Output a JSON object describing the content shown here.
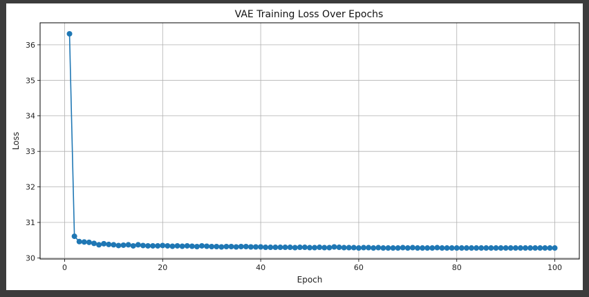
{
  "chart_data": {
    "type": "line",
    "title": "VAE Training Loss Over Epochs",
    "xlabel": "Epoch",
    "ylabel": "Loss",
    "xlim": [
      -5,
      105
    ],
    "ylim": [
      29.97,
      36.62
    ],
    "xticks": [
      0,
      20,
      40,
      60,
      80,
      100
    ],
    "yticks": [
      30,
      31,
      32,
      33,
      34,
      35,
      36
    ],
    "grid": true,
    "marker": "circle",
    "series": [
      {
        "color": "#1f77b4",
        "x": [
          1,
          2,
          3,
          4,
          5,
          6,
          7,
          8,
          9,
          10,
          11,
          12,
          13,
          14,
          15,
          16,
          17,
          18,
          19,
          20,
          21,
          22,
          23,
          24,
          25,
          26,
          27,
          28,
          29,
          30,
          31,
          32,
          33,
          34,
          35,
          36,
          37,
          38,
          39,
          40,
          41,
          42,
          43,
          44,
          45,
          46,
          47,
          48,
          49,
          50,
          51,
          52,
          53,
          54,
          55,
          56,
          57,
          58,
          59,
          60,
          61,
          62,
          63,
          64,
          65,
          66,
          67,
          68,
          69,
          70,
          71,
          72,
          73,
          74,
          75,
          76,
          77,
          78,
          79,
          80,
          81,
          82,
          83,
          84,
          85,
          86,
          87,
          88,
          89,
          90,
          91,
          92,
          93,
          94,
          95,
          96,
          97,
          98,
          99,
          100
        ],
        "values": [
          36.31,
          30.61,
          30.46,
          30.45,
          30.44,
          30.41,
          30.37,
          30.4,
          30.38,
          30.37,
          30.35,
          30.36,
          30.37,
          30.34,
          30.37,
          30.35,
          30.34,
          30.34,
          30.34,
          30.35,
          30.34,
          30.33,
          30.34,
          30.33,
          30.34,
          30.33,
          30.32,
          30.34,
          30.33,
          30.32,
          30.32,
          30.31,
          30.32,
          30.32,
          30.31,
          30.32,
          30.32,
          30.31,
          30.31,
          30.31,
          30.3,
          30.3,
          30.3,
          30.3,
          30.3,
          30.3,
          30.29,
          30.3,
          30.3,
          30.29,
          30.29,
          30.3,
          30.29,
          30.29,
          30.31,
          30.3,
          30.29,
          30.29,
          30.29,
          30.28,
          30.29,
          30.29,
          30.28,
          30.29,
          30.28,
          30.28,
          30.28,
          30.28,
          30.29,
          30.28,
          30.29,
          30.28,
          30.28,
          30.28,
          30.28,
          30.29,
          30.28,
          30.28,
          30.28,
          30.28,
          30.28,
          30.28,
          30.28,
          30.28,
          30.28,
          30.28,
          30.28,
          30.28,
          30.28,
          30.28,
          30.28,
          30.28,
          30.28,
          30.28,
          30.28,
          30.28,
          30.28,
          30.28,
          30.28,
          30.28
        ]
      }
    ]
  }
}
